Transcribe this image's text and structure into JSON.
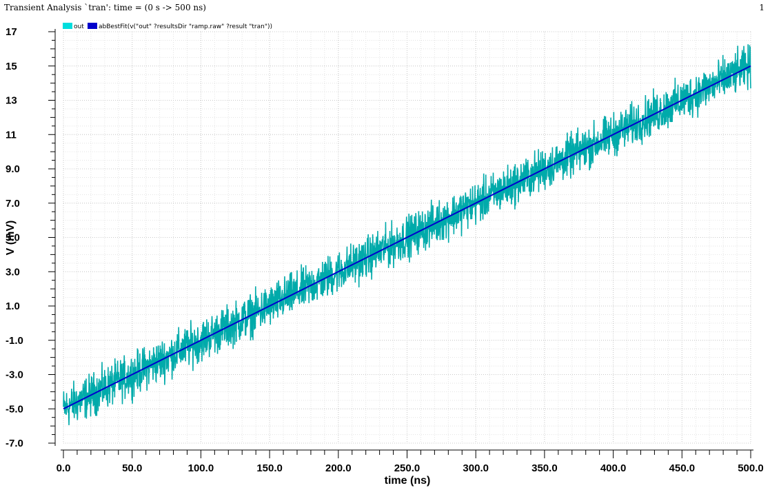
{
  "header": {
    "title": "Transient Analysis `tran': time = (0 s -> 500 ns)",
    "page_number": "1"
  },
  "chart_data": {
    "type": "line",
    "xlabel": "time (ns)",
    "ylabel": "V (mV)",
    "xlim": [
      0,
      500
    ],
    "ylim": [
      -7,
      17
    ],
    "xticks": [
      "0.0",
      "50.0",
      "100.0",
      "150.0",
      "200.0",
      "250.0",
      "300.0",
      "350.0",
      "400.0",
      "450.0",
      "500.0"
    ],
    "yticks": [
      "-7.0",
      "-5.0",
      "-3.0",
      "-1.0",
      "1.0",
      "3.0",
      "5.0",
      "7.0",
      "9.0",
      "11",
      "13",
      "15",
      "17"
    ],
    "grid": true,
    "legend_position": "top-left",
    "series": [
      {
        "name": "out",
        "color": "#00aaaa",
        "legend_color": "#00dddd",
        "description_line": "noisy ramp",
        "x": [
          0,
          50,
          100,
          150,
          200,
          250,
          300,
          350,
          400,
          450,
          500
        ],
        "values": [
          -5.0,
          -3.0,
          -1.0,
          1.0,
          3.0,
          5.0,
          7.0,
          9.0,
          11.0,
          13.0,
          15.0
        ],
        "noise_amplitude": 1.2
      },
      {
        "name": "abBestFit(v(\"out\" ?resultsDir \"ramp.raw\" ?result \"tran\"))",
        "color": "#0000cc",
        "x": [
          0,
          500
        ],
        "values": [
          -5.0,
          15.0
        ]
      }
    ]
  }
}
